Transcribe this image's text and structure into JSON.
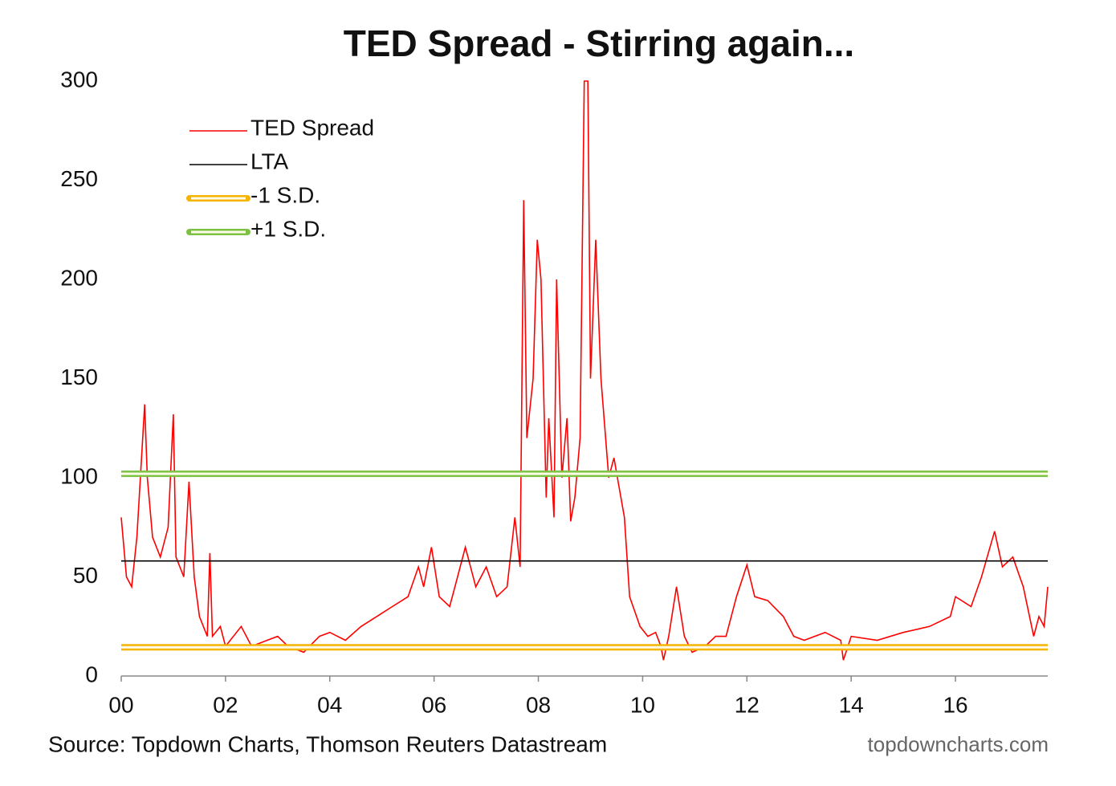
{
  "chart_data": {
    "type": "line",
    "title": "TED Spread - Stirring again...",
    "source": "Source: Topdown Charts, Thomson Reuters Datastream",
    "watermark": "topdowncharts.com",
    "xlim": [
      2000,
      2017.77
    ],
    "ylim": [
      0,
      300
    ],
    "xticks": [
      {
        "value": 2000,
        "label": "00"
      },
      {
        "value": 2002,
        "label": "02"
      },
      {
        "value": 2004,
        "label": "04"
      },
      {
        "value": 2006,
        "label": "06"
      },
      {
        "value": 2008,
        "label": "08"
      },
      {
        "value": 2010,
        "label": "10"
      },
      {
        "value": 2012,
        "label": "12"
      },
      {
        "value": 2014,
        "label": "14"
      },
      {
        "value": 2016,
        "label": "16"
      }
    ],
    "yticks": [
      0,
      50,
      100,
      150,
      200,
      250,
      300
    ],
    "legend": "upper-left",
    "series": [
      {
        "name": "TED Spread",
        "color": "#ff0000",
        "style": "line",
        "x": [
          2000.0,
          2000.1,
          2000.2,
          2000.3,
          2000.45,
          2000.5,
          2000.6,
          2000.75,
          2000.9,
          2001.0,
          2001.05,
          2001.2,
          2001.3,
          2001.4,
          2001.5,
          2001.65,
          2001.7,
          2001.75,
          2001.9,
          2002.0,
          2002.3,
          2002.5,
          2002.8,
          2003.0,
          2003.2,
          2003.5,
          2003.8,
          2004.0,
          2004.3,
          2004.6,
          2004.9,
          2005.2,
          2005.5,
          2005.7,
          2005.8,
          2005.95,
          2006.1,
          2006.3,
          2006.45,
          2006.6,
          2006.8,
          2007.0,
          2007.2,
          2007.4,
          2007.55,
          2007.65,
          2007.72,
          2007.78,
          2007.9,
          2007.98,
          2008.05,
          2008.15,
          2008.2,
          2008.3,
          2008.35,
          2008.45,
          2008.55,
          2008.62,
          2008.7,
          2008.8,
          2008.88,
          2008.95,
          2009.0,
          2009.1,
          2009.2,
          2009.35,
          2009.45,
          2009.55,
          2009.65,
          2009.75,
          2009.95,
          2010.1,
          2010.25,
          2010.35,
          2010.4,
          2010.5,
          2010.65,
          2010.8,
          2010.95,
          2011.2,
          2011.4,
          2011.6,
          2011.8,
          2012.0,
          2012.15,
          2012.4,
          2012.7,
          2012.9,
          2013.1,
          2013.5,
          2013.8,
          2013.85,
          2014.0,
          2014.5,
          2015.0,
          2015.5,
          2015.9,
          2016.0,
          2016.3,
          2016.5,
          2016.75,
          2016.9,
          2017.1,
          2017.3,
          2017.5,
          2017.6,
          2017.7,
          2017.77
        ],
        "values": [
          80,
          50,
          45,
          70,
          137,
          100,
          70,
          60,
          75,
          132,
          60,
          50,
          98,
          50,
          30,
          20,
          62,
          20,
          25,
          15,
          25,
          15,
          18,
          20,
          15,
          12,
          20,
          22,
          18,
          25,
          30,
          35,
          40,
          55,
          45,
          65,
          40,
          35,
          50,
          65,
          45,
          55,
          40,
          45,
          80,
          55,
          240,
          120,
          150,
          220,
          200,
          90,
          130,
          80,
          200,
          100,
          130,
          78,
          90,
          120,
          300,
          300,
          150,
          220,
          150,
          100,
          110,
          95,
          80,
          40,
          25,
          20,
          22,
          15,
          8,
          20,
          45,
          20,
          12,
          15,
          20,
          20,
          40,
          56,
          40,
          38,
          30,
          20,
          18,
          22,
          18,
          8,
          20,
          18,
          22,
          25,
          30,
          40,
          35,
          50,
          73,
          55,
          60,
          45,
          20,
          30,
          25,
          45
        ]
      },
      {
        "name": "LTA",
        "color": "#000000",
        "style": "line",
        "x": [
          2000,
          2017.77
        ],
        "values": [
          58,
          58
        ]
      },
      {
        "name": "-1 S.D.",
        "color": "#f5b400",
        "style": "double",
        "x": [
          2000,
          2017.77
        ],
        "values": [
          14.5,
          14.5
        ]
      },
      {
        "name": "+1 S.D.",
        "color": "#7cc242",
        "style": "double",
        "x": [
          2000,
          2017.77
        ],
        "values": [
          102,
          102
        ]
      }
    ]
  }
}
